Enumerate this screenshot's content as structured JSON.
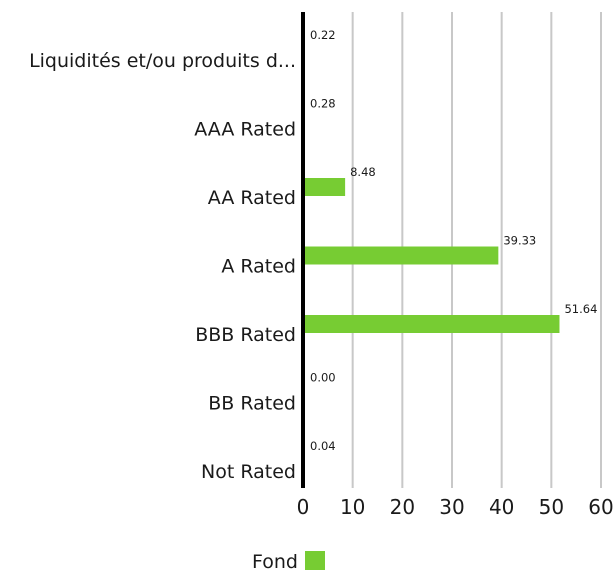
{
  "chart_data": {
    "type": "bar",
    "orientation": "horizontal",
    "categories": [
      "Liquidités et/ou produits d...",
      "AAA Rated",
      "AA Rated",
      "A Rated",
      "BBB Rated",
      "BB Rated",
      "Not Rated"
    ],
    "series": [
      {
        "name": "Fond",
        "values": [
          0.22,
          0.28,
          8.48,
          39.33,
          51.64,
          0.0,
          0.04
        ],
        "labels": [
          "0.22",
          "0.28",
          "8.48",
          "39.33",
          "51.64",
          "0.00",
          "0.04"
        ],
        "color": "#77cc33"
      }
    ],
    "xlim": [
      0,
      60
    ],
    "xticks": [
      "0",
      "10",
      "20",
      "30",
      "40",
      "50",
      "60"
    ],
    "grid": true,
    "legend_position": "bottom"
  }
}
